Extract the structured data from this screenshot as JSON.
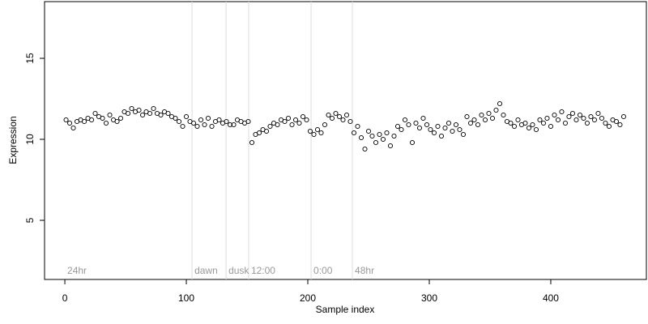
{
  "chart_data": {
    "type": "scatter",
    "xlabel": "Sample index",
    "ylabel": "Expression",
    "xlim": [
      -16.7,
      478.7
    ],
    "ylim": [
      1.35,
      18.5
    ],
    "xticks": [
      0,
      100,
      200,
      300,
      400
    ],
    "yticks": [
      5,
      10,
      15
    ],
    "vlines": [
      104.7,
      132.7,
      151.3,
      202.7,
      236.7
    ],
    "annotations": [
      {
        "text": "24hr",
        "x": 0
      },
      {
        "text": "dawn",
        "x": 104.7
      },
      {
        "text": "dusk",
        "x": 132.7
      },
      {
        "text": "12:00",
        "x": 151.3
      },
      {
        "text": "0:00",
        "x": 202.7
      },
      {
        "text": "48hr",
        "x": 236.7
      }
    ],
    "color": "#000000",
    "x": [
      1,
      4,
      7,
      10,
      13,
      16,
      19,
      22,
      25,
      28,
      31,
      34,
      37,
      40,
      43,
      46,
      49,
      52,
      55,
      58,
      61,
      64,
      67,
      70,
      73,
      76,
      79,
      82,
      85,
      88,
      91,
      94,
      97,
      100,
      103,
      106,
      109,
      112,
      115,
      118,
      121,
      124,
      127,
      130,
      133,
      136,
      139,
      142,
      145,
      148,
      151,
      154,
      157,
      160,
      163,
      166,
      169,
      172,
      175,
      178,
      181,
      184,
      187,
      190,
      193,
      196,
      199,
      202,
      205,
      208,
      211,
      214,
      217,
      220,
      223,
      226,
      229,
      232,
      235,
      238,
      241,
      244,
      247,
      250,
      253,
      256,
      259,
      262,
      265,
      268,
      271,
      274,
      277,
      280,
      283,
      286,
      289,
      292,
      295,
      298,
      301,
      304,
      307,
      310,
      313,
      316,
      319,
      322,
      325,
      328,
      331,
      334,
      337,
      340,
      343,
      346,
      349,
      352,
      355,
      358,
      361,
      364,
      367,
      370,
      373,
      376,
      379,
      382,
      385,
      388,
      391,
      394,
      397,
      400,
      403,
      406,
      409,
      412,
      415,
      418,
      421,
      424,
      427,
      430,
      433,
      436,
      439,
      442,
      445,
      448,
      451,
      454,
      457,
      460
    ],
    "values": [
      11.2,
      11.0,
      10.7,
      11.1,
      11.2,
      11.1,
      11.3,
      11.2,
      11.6,
      11.4,
      11.3,
      11.0,
      11.5,
      11.2,
      11.1,
      11.3,
      11.7,
      11.6,
      11.9,
      11.7,
      11.8,
      11.5,
      11.7,
      11.6,
      11.9,
      11.6,
      11.5,
      11.7,
      11.6,
      11.4,
      11.3,
      11.1,
      10.8,
      11.4,
      11.1,
      11.0,
      10.8,
      11.2,
      10.9,
      11.3,
      10.8,
      11.1,
      11.2,
      11.0,
      11.1,
      10.9,
      10.9,
      11.2,
      11.1,
      11.0,
      11.1,
      9.8,
      10.3,
      10.4,
      10.6,
      10.5,
      10.8,
      11.0,
      10.9,
      11.2,
      11.1,
      11.3,
      10.9,
      11.2,
      11.0,
      11.4,
      11.2,
      10.5,
      10.3,
      10.6,
      10.4,
      10.9,
      11.5,
      11.3,
      11.6,
      11.4,
      11.2,
      11.5,
      11.1,
      10.4,
      10.8,
      10.1,
      9.4,
      10.5,
      10.2,
      9.8,
      10.3,
      10.0,
      10.4,
      9.6,
      10.2,
      10.8,
      10.6,
      11.2,
      10.9,
      9.8,
      11.0,
      10.7,
      11.3,
      10.9,
      10.6,
      10.4,
      10.8,
      10.2,
      10.7,
      11.0,
      10.5,
      10.9,
      10.6,
      10.3,
      11.4,
      11.0,
      11.2,
      10.9,
      11.5,
      11.2,
      11.6,
      11.3,
      11.8,
      12.2,
      11.5,
      11.1,
      11.0,
      10.8,
      11.2,
      10.9,
      11.0,
      10.7,
      10.9,
      10.6,
      11.2,
      11.0,
      11.3,
      10.8,
      11.5,
      11.2,
      11.7,
      11.0,
      11.4,
      11.6,
      11.2,
      11.5,
      11.3,
      11.0,
      11.4,
      11.2,
      11.6,
      11.3,
      11.0,
      10.8,
      11.2,
      11.1,
      10.9,
      11.4
    ]
  }
}
